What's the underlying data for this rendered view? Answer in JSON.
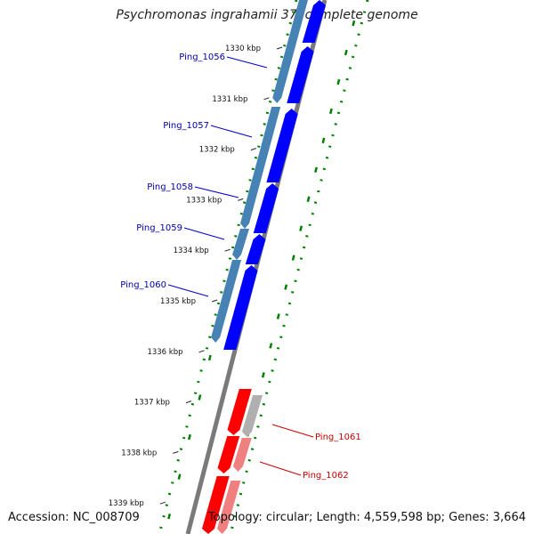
{
  "title": "Psychromonas ingrahamii 37, complete genome",
  "footer": {
    "accession": "Accession: NC_008709",
    "summary": "Topology: circular; Length: 4,559,598 bp; Genes: 3,664"
  },
  "ticks": [
    "1330 kbp",
    "1331 kbp",
    "1332 kbp",
    "1333 kbp",
    "1334 kbp",
    "1335 kbp",
    "1336 kbp",
    "1337 kbp",
    "1338 kbp",
    "1339 kbp"
  ],
  "genes": [
    {
      "label": "Ping_1056",
      "strand": "forward",
      "color": "#0000aa"
    },
    {
      "label": "Ping_1057",
      "strand": "forward",
      "color": "#0000aa"
    },
    {
      "label": "Ping_1058",
      "strand": "forward",
      "color": "#0000aa"
    },
    {
      "label": "Ping_1059",
      "strand": "forward",
      "color": "#0000aa"
    },
    {
      "label": "Ping_1060",
      "strand": "forward",
      "color": "#0000aa"
    },
    {
      "label": "Ping_1061",
      "strand": "reverse",
      "color": "#cc0000"
    },
    {
      "label": "Ping_1062",
      "strand": "reverse",
      "color": "#cc0000"
    }
  ],
  "colors": {
    "forward_cds": "#0000ff",
    "forward_feature": "#4682b4",
    "reverse_cds": "#ff0000",
    "reverse_feature": "#f08080",
    "backbone": "#808080",
    "gc_skew": "#008000"
  }
}
